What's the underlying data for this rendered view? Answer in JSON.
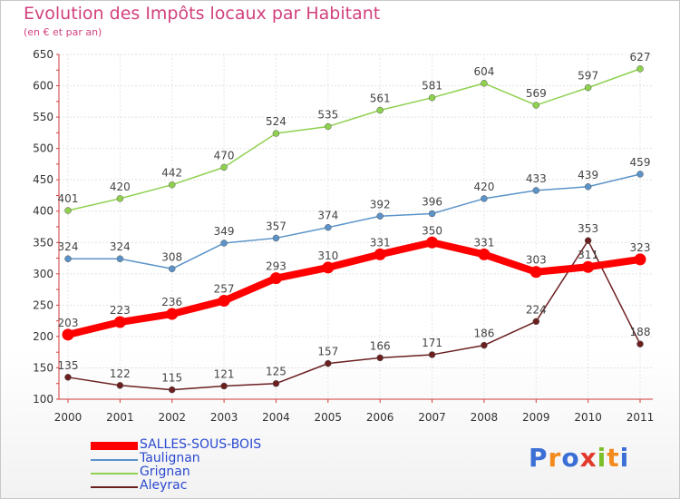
{
  "title": "Evolution des Impôts locaux par Habitant",
  "subtitle": "(en € et par an)",
  "logo": {
    "text": "Proxiti",
    "colors": [
      "#3b6fd6",
      "#f28a1e",
      "#3b6fd6",
      "#e23b2e",
      "#7cbf2a",
      "#f28a1e",
      "#3b6fd6"
    ]
  },
  "chart_data": {
    "type": "line",
    "x": [
      "2000",
      "2001",
      "2002",
      "2003",
      "2004",
      "2005",
      "2006",
      "2007",
      "2008",
      "2009",
      "2010",
      "2011"
    ],
    "ylim": [
      100,
      650
    ],
    "yticks": [
      100,
      150,
      200,
      250,
      300,
      350,
      400,
      450,
      500,
      550,
      600,
      650
    ],
    "grid": true,
    "legend_position": "bottom-left",
    "series": [
      {
        "name": "SALLES-SOUS-BOIS",
        "color": "#ff0000",
        "values": [
          203,
          223,
          236,
          257,
          293,
          310,
          331,
          350,
          331,
          303,
          311,
          323
        ],
        "labels": [
          "203",
          "223",
          "236",
          "257",
          "293",
          "310",
          "331",
          "350",
          "331",
          "303",
          "311",
          "323"
        ]
      },
      {
        "name": "Taulignan",
        "color": "#5b93c9",
        "values": [
          324,
          324,
          308,
          349,
          357,
          374,
          392,
          396,
          420,
          433,
          439,
          459
        ],
        "labels": [
          "324",
          "324",
          "308",
          "349",
          "357",
          "374",
          "392",
          "396",
          "420",
          "433",
          "439",
          "459"
        ]
      },
      {
        "name": "Grignan",
        "color": "#8fd14f",
        "values": [
          401,
          420,
          442,
          470,
          524,
          535,
          561,
          581,
          604,
          569,
          597,
          627
        ],
        "labels": [
          "401",
          "420",
          "442",
          "470",
          "524",
          "535",
          "561",
          "581",
          "604",
          "569",
          "597",
          "627"
        ]
      },
      {
        "name": "Aleyrac",
        "color": "#6b1f1f",
        "values": [
          135,
          122,
          115,
          121,
          125,
          157,
          166,
          171,
          186,
          224,
          353,
          188
        ],
        "labels": [
          "135",
          "122",
          "115",
          "121",
          "125",
          "157",
          "166",
          "171",
          "186",
          "224",
          "353",
          "188"
        ]
      }
    ]
  }
}
